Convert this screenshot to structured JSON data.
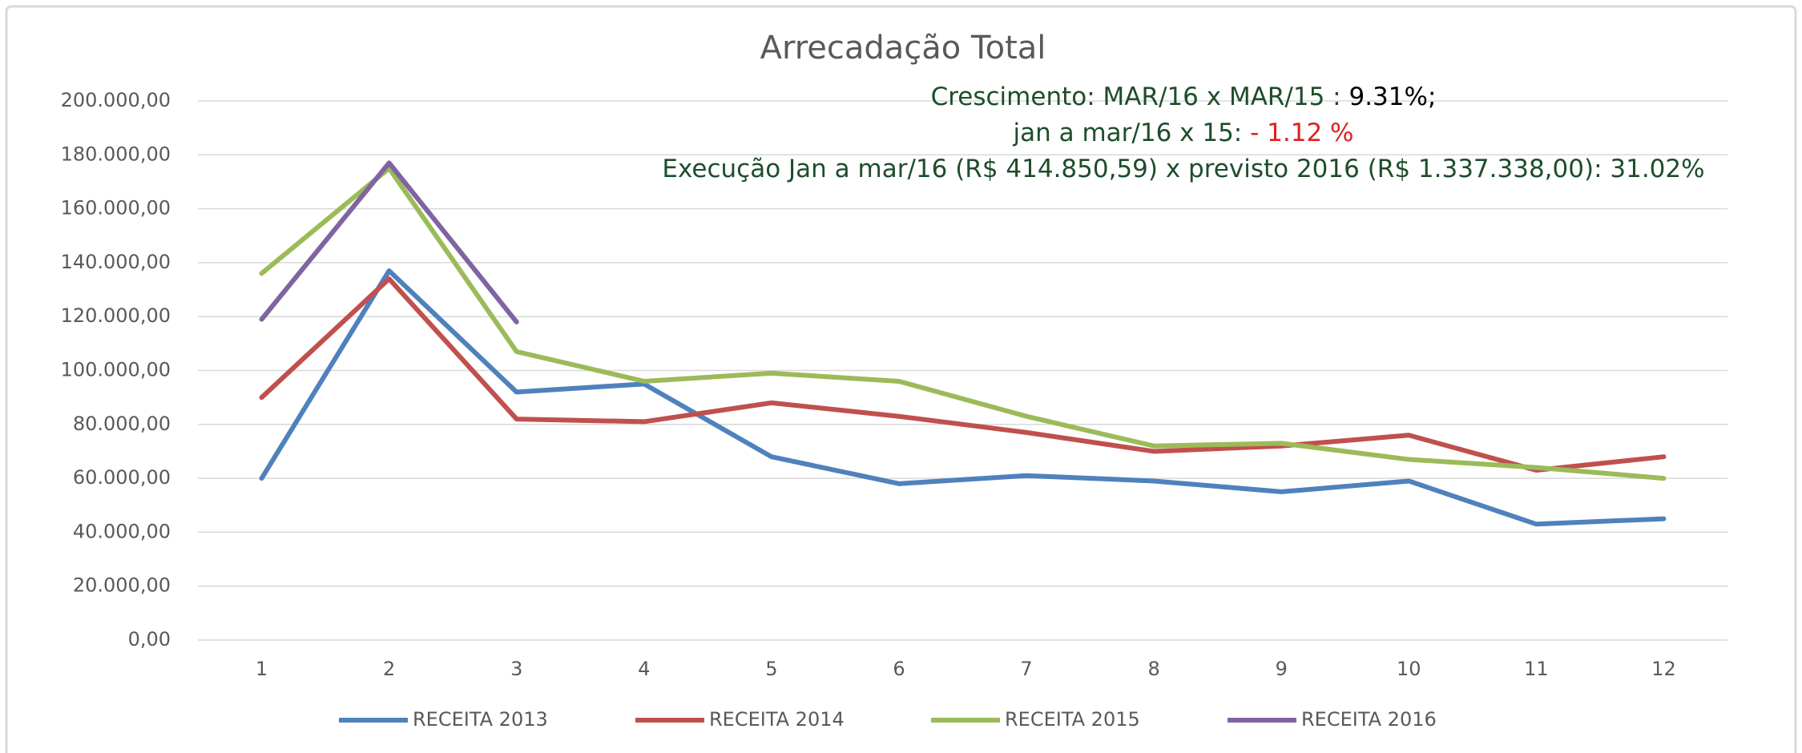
{
  "chart_data": {
    "type": "line",
    "title": "Arrecadação Total",
    "categories": [
      "1",
      "2",
      "3",
      "4",
      "5",
      "6",
      "7",
      "8",
      "9",
      "10",
      "11",
      "12"
    ],
    "series": [
      {
        "name": "RECEITA 2013",
        "color": "#4f81bd",
        "values": [
          60000,
          137000,
          92000,
          95000,
          68000,
          58000,
          61000,
          59000,
          55000,
          59000,
          43000,
          45000
        ]
      },
      {
        "name": "RECEITA 2014",
        "color": "#c0504d",
        "values": [
          90000,
          134000,
          82000,
          81000,
          88000,
          83000,
          77000,
          70000,
          72000,
          76000,
          63000,
          68000
        ]
      },
      {
        "name": "RECEITA 2015",
        "color": "#9bbb59",
        "values": [
          136000,
          175000,
          107000,
          96000,
          99000,
          96000,
          83000,
          72000,
          73000,
          67000,
          64000,
          60000
        ]
      },
      {
        "name": "RECEITA 2016",
        "color": "#8064a2",
        "values": [
          119000,
          177000,
          118000,
          null,
          null,
          null,
          null,
          null,
          null,
          null,
          null,
          null
        ]
      }
    ],
    "ylim": [
      0,
      200000
    ],
    "yticks": [
      {
        "value": 0,
        "label": "0,00"
      },
      {
        "value": 20000,
        "label": "20.000,00"
      },
      {
        "value": 40000,
        "label": "40.000,00"
      },
      {
        "value": 60000,
        "label": "60.000,00"
      },
      {
        "value": 80000,
        "label": "80.000,00"
      },
      {
        "value": 100000,
        "label": "100.000,00"
      },
      {
        "value": 120000,
        "label": "120.000,00"
      },
      {
        "value": 140000,
        "label": "140.000,00"
      },
      {
        "value": 160000,
        "label": "160.000,00"
      },
      {
        "value": 180000,
        "label": "180.000,00"
      },
      {
        "value": 200000,
        "label": "200.000,00"
      }
    ],
    "grid": true,
    "legend": "bottom",
    "annotations": [
      [
        {
          "text": "Crescimento: MAR/16 x MAR/15 : ",
          "color": "#1e4d2b"
        },
        {
          "text": "9.31%;",
          "color": "#000000"
        }
      ],
      [
        {
          "text": "jan a mar/16 x 15: ",
          "color": "#1e4d2b"
        },
        {
          "text": "- 1.12 %",
          "color": "#e02020"
        }
      ],
      [
        {
          "text": "Execução Jan a mar/16 (R$ 414.850,59) x  previsto 2016 (R$ 1.337.338,00): 31.02%",
          "color": "#1e4d2b"
        }
      ]
    ]
  }
}
